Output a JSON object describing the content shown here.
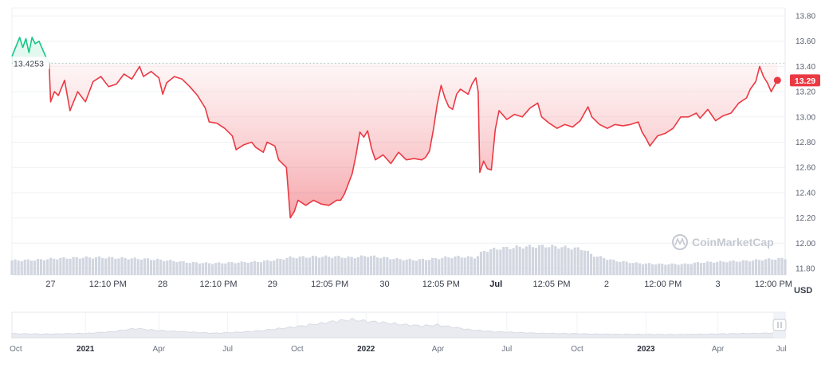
{
  "chart_data": {
    "type": "line",
    "unit": "USD",
    "open_label": "13.4253",
    "current_label": "13.29",
    "watermark": "CoinMarketCap",
    "ylim": [
      11.8,
      13.8
    ],
    "yticks": [
      "13.80",
      "13.60",
      "13.40",
      "13.20",
      "13.00",
      "12.80",
      "12.60",
      "12.40",
      "12.20",
      "12.00",
      "11.80"
    ],
    "xticks": [
      {
        "label": "27",
        "t": 0.05,
        "bold": false
      },
      {
        "label": "12:10 PM",
        "t": 0.124,
        "bold": false
      },
      {
        "label": "28",
        "t": 0.195,
        "bold": false
      },
      {
        "label": "12:10 PM",
        "t": 0.267,
        "bold": false
      },
      {
        "label": "29",
        "t": 0.337,
        "bold": false
      },
      {
        "label": "12:05 PM",
        "t": 0.411,
        "bold": false
      },
      {
        "label": "30",
        "t": 0.482,
        "bold": false
      },
      {
        "label": "12:05 PM",
        "t": 0.555,
        "bold": false
      },
      {
        "label": "Jul",
        "t": 0.626,
        "bold": true
      },
      {
        "label": "12:05 PM",
        "t": 0.698,
        "bold": false
      },
      {
        "label": "2",
        "t": 0.769,
        "bold": false
      },
      {
        "label": "12:00 PM",
        "t": 0.842,
        "bold": false
      },
      {
        "label": "3",
        "t": 0.913,
        "bold": false
      },
      {
        "label": "12:00 PM",
        "t": 0.985,
        "bold": false
      }
    ],
    "navigator_ticks": [
      {
        "label": "Oct",
        "t": 0.005,
        "bold": false
      },
      {
        "label": "2021",
        "t": 0.095,
        "bold": true
      },
      {
        "label": "Apr",
        "t": 0.19,
        "bold": false
      },
      {
        "label": "Jul",
        "t": 0.279,
        "bold": false
      },
      {
        "label": "Oct",
        "t": 0.369,
        "bold": false
      },
      {
        "label": "2022",
        "t": 0.458,
        "bold": true
      },
      {
        "label": "Apr",
        "t": 0.551,
        "bold": false
      },
      {
        "label": "Jul",
        "t": 0.64,
        "bold": false
      },
      {
        "label": "Oct",
        "t": 0.731,
        "bold": false
      },
      {
        "label": "2023",
        "t": 0.82,
        "bold": true
      },
      {
        "label": "Apr",
        "t": 0.913,
        "bold": false
      },
      {
        "label": "Jul",
        "t": 0.995,
        "bold": false
      }
    ],
    "series": [
      {
        "values": [
          [
            0.0,
            13.48
          ],
          [
            0.01,
            13.63
          ],
          [
            0.014,
            13.55
          ],
          [
            0.018,
            13.62
          ],
          [
            0.022,
            13.51
          ],
          [
            0.026,
            13.63
          ],
          [
            0.03,
            13.58
          ],
          [
            0.035,
            13.6
          ],
          [
            0.04,
            13.53
          ],
          [
            0.045,
            13.46
          ],
          [
            0.048,
            13.43
          ],
          [
            0.05,
            13.12
          ],
          [
            0.055,
            13.2
          ],
          [
            0.06,
            13.17
          ],
          [
            0.068,
            13.29
          ],
          [
            0.075,
            13.05
          ],
          [
            0.085,
            13.2
          ],
          [
            0.095,
            13.12
          ],
          [
            0.105,
            13.28
          ],
          [
            0.115,
            13.32
          ],
          [
            0.125,
            13.24
          ],
          [
            0.135,
            13.26
          ],
          [
            0.145,
            13.34
          ],
          [
            0.155,
            13.3
          ],
          [
            0.165,
            13.4
          ],
          [
            0.17,
            13.32
          ],
          [
            0.18,
            13.36
          ],
          [
            0.19,
            13.31
          ],
          [
            0.195,
            13.18
          ],
          [
            0.2,
            13.27
          ],
          [
            0.21,
            13.32
          ],
          [
            0.22,
            13.3
          ],
          [
            0.23,
            13.24
          ],
          [
            0.24,
            13.17
          ],
          [
            0.25,
            13.07
          ],
          [
            0.255,
            12.96
          ],
          [
            0.265,
            12.95
          ],
          [
            0.275,
            12.91
          ],
          [
            0.285,
            12.85
          ],
          [
            0.29,
            12.74
          ],
          [
            0.3,
            12.78
          ],
          [
            0.31,
            12.8
          ],
          [
            0.315,
            12.76
          ],
          [
            0.325,
            12.72
          ],
          [
            0.33,
            12.8
          ],
          [
            0.34,
            12.77
          ],
          [
            0.345,
            12.66
          ],
          [
            0.355,
            12.6
          ],
          [
            0.36,
            12.2
          ],
          [
            0.365,
            12.25
          ],
          [
            0.37,
            12.34
          ],
          [
            0.38,
            12.3
          ],
          [
            0.39,
            12.34
          ],
          [
            0.4,
            12.31
          ],
          [
            0.41,
            12.3
          ],
          [
            0.42,
            12.34
          ],
          [
            0.425,
            12.34
          ],
          [
            0.43,
            12.39
          ],
          [
            0.44,
            12.55
          ],
          [
            0.445,
            12.7
          ],
          [
            0.45,
            12.88
          ],
          [
            0.455,
            12.84
          ],
          [
            0.46,
            12.89
          ],
          [
            0.465,
            12.75
          ],
          [
            0.47,
            12.66
          ],
          [
            0.48,
            12.7
          ],
          [
            0.49,
            12.63
          ],
          [
            0.5,
            12.72
          ],
          [
            0.51,
            12.66
          ],
          [
            0.52,
            12.67
          ],
          [
            0.53,
            12.66
          ],
          [
            0.535,
            12.68
          ],
          [
            0.54,
            12.73
          ],
          [
            0.545,
            12.9
          ],
          [
            0.55,
            13.1
          ],
          [
            0.555,
            13.25
          ],
          [
            0.56,
            13.15
          ],
          [
            0.565,
            13.08
          ],
          [
            0.57,
            13.06
          ],
          [
            0.575,
            13.18
          ],
          [
            0.58,
            13.22
          ],
          [
            0.59,
            13.18
          ],
          [
            0.595,
            13.26
          ],
          [
            0.6,
            13.31
          ],
          [
            0.603,
            13.2
          ],
          [
            0.605,
            12.56
          ],
          [
            0.61,
            12.65
          ],
          [
            0.615,
            12.59
          ],
          [
            0.62,
            12.58
          ],
          [
            0.625,
            12.9
          ],
          [
            0.63,
            13.05
          ],
          [
            0.64,
            12.98
          ],
          [
            0.65,
            13.02
          ],
          [
            0.66,
            13.0
          ],
          [
            0.67,
            13.07
          ],
          [
            0.68,
            13.11
          ],
          [
            0.685,
            13.0
          ],
          [
            0.695,
            12.95
          ],
          [
            0.705,
            12.91
          ],
          [
            0.715,
            12.94
          ],
          [
            0.725,
            12.92
          ],
          [
            0.735,
            12.97
          ],
          [
            0.745,
            13.08
          ],
          [
            0.75,
            13.0
          ],
          [
            0.76,
            12.94
          ],
          [
            0.77,
            12.91
          ],
          [
            0.78,
            12.94
          ],
          [
            0.79,
            12.93
          ],
          [
            0.8,
            12.94
          ],
          [
            0.81,
            12.96
          ],
          [
            0.815,
            12.88
          ],
          [
            0.82,
            12.83
          ],
          [
            0.825,
            12.77
          ],
          [
            0.835,
            12.85
          ],
          [
            0.845,
            12.87
          ],
          [
            0.855,
            12.91
          ],
          [
            0.865,
            13.0
          ],
          [
            0.875,
            13.0
          ],
          [
            0.885,
            13.03
          ],
          [
            0.89,
            12.99
          ],
          [
            0.9,
            13.06
          ],
          [
            0.91,
            12.97
          ],
          [
            0.92,
            13.01
          ],
          [
            0.93,
            13.03
          ],
          [
            0.94,
            13.11
          ],
          [
            0.95,
            13.15
          ],
          [
            0.955,
            13.22
          ],
          [
            0.962,
            13.28
          ],
          [
            0.967,
            13.4
          ],
          [
            0.972,
            13.32
          ],
          [
            0.977,
            13.27
          ],
          [
            0.982,
            13.2
          ],
          [
            0.99,
            13.29
          ]
        ]
      }
    ],
    "volume_profile": [
      [
        0.0,
        0.35
      ],
      [
        0.03,
        0.36
      ],
      [
        0.06,
        0.4
      ],
      [
        0.09,
        0.42
      ],
      [
        0.12,
        0.42
      ],
      [
        0.15,
        0.4
      ],
      [
        0.18,
        0.38
      ],
      [
        0.2,
        0.35
      ],
      [
        0.23,
        0.3
      ],
      [
        0.26,
        0.28
      ],
      [
        0.29,
        0.3
      ],
      [
        0.32,
        0.32
      ],
      [
        0.34,
        0.36
      ],
      [
        0.36,
        0.42
      ],
      [
        0.39,
        0.44
      ],
      [
        0.42,
        0.44
      ],
      [
        0.44,
        0.42
      ],
      [
        0.46,
        0.46
      ],
      [
        0.48,
        0.42
      ],
      [
        0.5,
        0.38
      ],
      [
        0.52,
        0.36
      ],
      [
        0.54,
        0.38
      ],
      [
        0.56,
        0.42
      ],
      [
        0.58,
        0.44
      ],
      [
        0.6,
        0.42
      ],
      [
        0.61,
        0.58
      ],
      [
        0.63,
        0.64
      ],
      [
        0.66,
        0.68
      ],
      [
        0.69,
        0.7
      ],
      [
        0.72,
        0.66
      ],
      [
        0.74,
        0.62
      ],
      [
        0.75,
        0.48
      ],
      [
        0.78,
        0.34
      ],
      [
        0.81,
        0.28
      ],
      [
        0.84,
        0.26
      ],
      [
        0.87,
        0.26
      ],
      [
        0.89,
        0.3
      ],
      [
        0.92,
        0.32
      ],
      [
        0.95,
        0.34
      ],
      [
        0.98,
        0.38
      ],
      [
        1.0,
        0.4
      ]
    ],
    "navigator_profile": [
      [
        0.0,
        0.2
      ],
      [
        0.05,
        0.18
      ],
      [
        0.1,
        0.22
      ],
      [
        0.13,
        0.3
      ],
      [
        0.16,
        0.45
      ],
      [
        0.19,
        0.35
      ],
      [
        0.22,
        0.3
      ],
      [
        0.26,
        0.22
      ],
      [
        0.29,
        0.26
      ],
      [
        0.32,
        0.34
      ],
      [
        0.35,
        0.46
      ],
      [
        0.37,
        0.55
      ],
      [
        0.4,
        0.7
      ],
      [
        0.42,
        0.82
      ],
      [
        0.44,
        0.88
      ],
      [
        0.46,
        0.8
      ],
      [
        0.48,
        0.74
      ],
      [
        0.5,
        0.66
      ],
      [
        0.53,
        0.58
      ],
      [
        0.55,
        0.62
      ],
      [
        0.57,
        0.52
      ],
      [
        0.59,
        0.4
      ],
      [
        0.62,
        0.3
      ],
      [
        0.65,
        0.26
      ],
      [
        0.68,
        0.22
      ],
      [
        0.72,
        0.2
      ],
      [
        0.76,
        0.18
      ],
      [
        0.8,
        0.17
      ],
      [
        0.85,
        0.16
      ],
      [
        0.9,
        0.18
      ],
      [
        0.94,
        0.2
      ],
      [
        0.97,
        0.22
      ],
      [
        1.0,
        0.24
      ]
    ],
    "colors": {
      "down": "#ea3943",
      "up": "#16c784",
      "fill_top": "#f6a6ab",
      "grid": "#eef0f3",
      "volume": "#c9cfdb"
    }
  }
}
